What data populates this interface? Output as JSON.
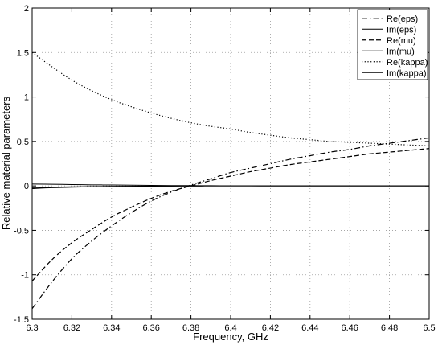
{
  "chart_data": {
    "type": "line",
    "title": "",
    "xlabel": "Frequency, GHz",
    "ylabel": "Relative material parameters",
    "xlim": [
      6.3,
      6.5
    ],
    "ylim": [
      -1.5,
      2
    ],
    "grid": true,
    "legend_position": "top-right",
    "x_ticks": [
      6.3,
      6.32,
      6.34,
      6.36,
      6.38,
      6.4,
      6.42,
      6.44,
      6.46,
      6.48,
      6.5
    ],
    "x_tick_labels": [
      "6.3",
      "6.32",
      "6.34",
      "6.36",
      "6.38",
      "6.4",
      "6.42",
      "6.44",
      "6.46",
      "6.48",
      "6.5"
    ],
    "y_ticks": [
      -1.5,
      -1,
      -0.5,
      0,
      0.5,
      1,
      1.5,
      2
    ],
    "y_tick_labels": [
      "-1.5",
      "-1",
      "-0.5",
      "0",
      "0.5",
      "1",
      "1.5",
      "2"
    ],
    "x": [
      6.3,
      6.31,
      6.32,
      6.33,
      6.34,
      6.35,
      6.36,
      6.37,
      6.38,
      6.39,
      6.4,
      6.41,
      6.42,
      6.43,
      6.44,
      6.45,
      6.46,
      6.47,
      6.48,
      6.49,
      6.5
    ],
    "series": [
      {
        "name": "Re(eps)",
        "style": "dashdot",
        "color": "#000000",
        "values": [
          -1.38,
          -1.08,
          -0.82,
          -0.62,
          -0.45,
          -0.3,
          -0.17,
          -0.07,
          0.01,
          0.08,
          0.15,
          0.2,
          0.25,
          0.3,
          0.34,
          0.38,
          0.41,
          0.45,
          0.48,
          0.51,
          0.54
        ]
      },
      {
        "name": "Im(eps)",
        "style": "solid",
        "color": "#000000",
        "values": [
          -0.03,
          -0.02,
          -0.015,
          -0.01,
          -0.007,
          -0.005,
          -0.003,
          -0.002,
          -0.001,
          0,
          0,
          0,
          0,
          0,
          0,
          0,
          0,
          0,
          0,
          0,
          0
        ]
      },
      {
        "name": "Re(mu)",
        "style": "dashed",
        "color": "#000000",
        "values": [
          -1.07,
          -0.83,
          -0.64,
          -0.49,
          -0.35,
          -0.24,
          -0.14,
          -0.06,
          0.0,
          0.06,
          0.11,
          0.16,
          0.2,
          0.24,
          0.27,
          0.3,
          0.33,
          0.36,
          0.38,
          0.4,
          0.42
        ]
      },
      {
        "name": "Im(mu)",
        "style": "solid",
        "color": "#000000",
        "values": [
          0.02,
          0.018,
          0.015,
          0.012,
          0.01,
          0.008,
          0.006,
          0.004,
          0.003,
          0.002,
          0.001,
          0.001,
          0,
          0,
          0,
          0,
          0,
          0,
          0,
          0,
          0
        ]
      },
      {
        "name": "Re(kappa)",
        "style": "dotted",
        "color": "#000000",
        "values": [
          1.5,
          1.34,
          1.19,
          1.07,
          0.97,
          0.89,
          0.82,
          0.76,
          0.71,
          0.67,
          0.64,
          0.6,
          0.57,
          0.54,
          0.52,
          0.5,
          0.49,
          0.48,
          0.47,
          0.46,
          0.45
        ]
      },
      {
        "name": "Im(kappa)",
        "style": "solid",
        "color": "#000000",
        "values": [
          -0.02,
          -0.015,
          -0.01,
          -0.008,
          -0.006,
          -0.004,
          -0.003,
          -0.002,
          -0.001,
          0,
          0,
          0,
          0,
          0,
          0,
          0,
          0,
          0,
          0,
          0,
          0
        ]
      }
    ]
  }
}
